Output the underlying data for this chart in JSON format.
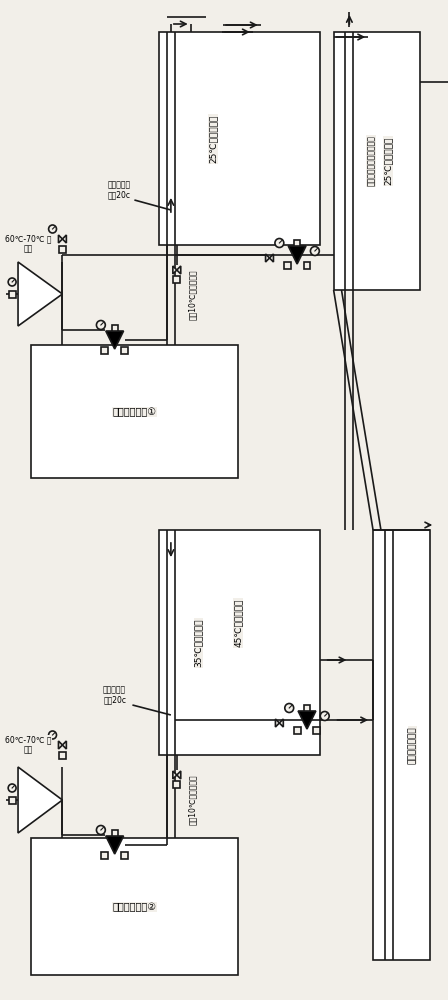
{
  "bg_color": "#f2efe9",
  "line_color": "#1a1a1a",
  "system1_label": "热泵回收系统①",
  "system2_label": "热泵回收系统②",
  "label_prefilter": "预灰后的混\n合汇20c",
  "label_60_70": "60℃-70℃ 混\n合汏",
  "label_temp_drop": "温降10℃冷却循环水",
  "label_25_circ": "25℃冷却循环水",
  "label_35_circ": "35℃冷却循环水",
  "label_45_circ": "45℃冷却循环水",
  "label_enter_system": "进入原有冷却循环水系统",
  "label_sugar_cool": "制糖冷却循环水"
}
